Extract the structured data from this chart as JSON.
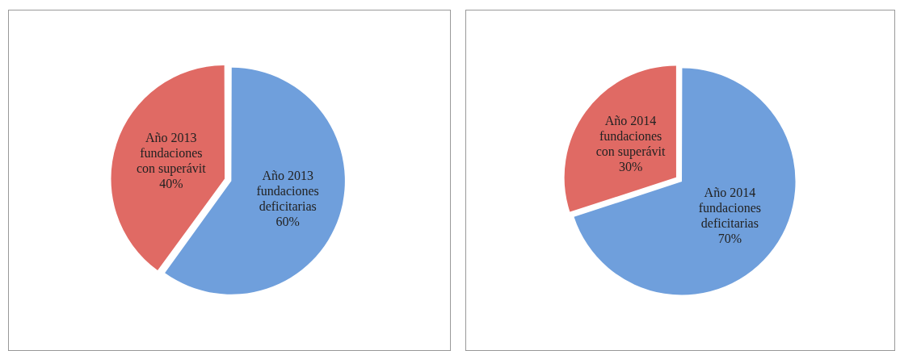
{
  "chart_data": [
    {
      "type": "pie",
      "categories": [
        "Año 2013 fundaciones deficitarias",
        "Año 2013 fundaciones con superávit"
      ],
      "values": [
        60,
        40
      ],
      "colors": [
        "#6f9fdc",
        "#e06a64"
      ],
      "value_labels": [
        "60%",
        "40%"
      ],
      "legend": false
    },
    {
      "type": "pie",
      "categories": [
        "Año 2014 fundaciones deficitarias",
        "Año 2014 fundaciones con superávit"
      ],
      "values": [
        70,
        30
      ],
      "colors": [
        "#6f9fdc",
        "#e06a64"
      ],
      "value_labels": [
        "70%",
        "30%"
      ],
      "legend": false
    }
  ]
}
